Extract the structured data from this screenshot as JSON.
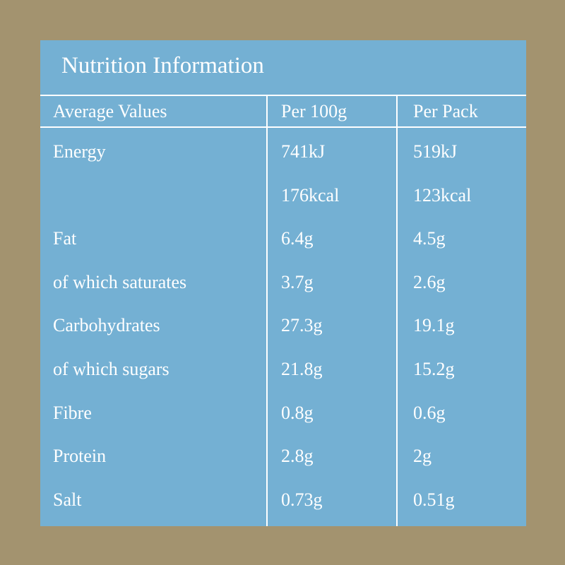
{
  "title": "Nutrition Information",
  "table": {
    "header": [
      "Average Values",
      "Per 100g",
      "Per Pack"
    ],
    "rows": [
      [
        "Energy",
        "741kJ",
        "519kJ"
      ],
      [
        null,
        "176kcal",
        "123kcal"
      ],
      [
        "Fat",
        "6.4g",
        "4.5g"
      ],
      [
        "of which saturates",
        "3.7g",
        "2.6g"
      ],
      [
        "Carbohydrates",
        "27.3g",
        "19.1g"
      ],
      [
        "of which sugars",
        "21.8g",
        "15.2g"
      ],
      [
        "Fibre",
        "0.8g",
        "0.6g"
      ],
      [
        "Protein",
        "2.8g",
        "2g"
      ],
      [
        "Salt",
        "0.73g",
        "0.51g"
      ]
    ]
  }
}
